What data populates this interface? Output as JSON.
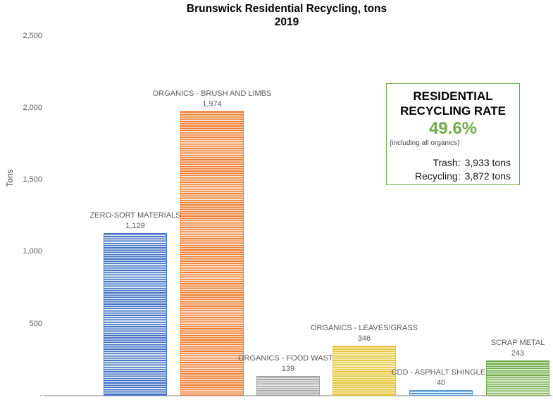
{
  "title": {
    "line1": "Brunswick Residential Recycling, tons",
    "line2": "2019"
  },
  "y_axis": {
    "label": "Tons",
    "ticks": [
      {
        "label": "2,500",
        "value": 2500
      },
      {
        "label": "2,000",
        "value": 2000
      },
      {
        "label": "1,500",
        "value": 1500
      },
      {
        "label": "1,000",
        "value": 1000
      },
      {
        "label": "500",
        "value": 500
      },
      {
        "label": "-",
        "value": 0
      }
    ]
  },
  "chart_data": {
    "type": "bar",
    "title": "Brunswick Residential Recycling, tons 2019",
    "xlabel": "",
    "ylabel": "Tons",
    "ylim": [
      0,
      2500
    ],
    "grid": false,
    "legend": false,
    "categories": [
      "ZERO-SORT MATERIALS",
      "ORGANICS - BRUSH AND LIMBS",
      "ORGANICS - FOOD WASTE",
      "ORGANICS - LEAVES/GRASS",
      "CDD - ASPHALT SHINGLES",
      "SCRAP METAL"
    ],
    "values": [
      1129,
      1974,
      139,
      346,
      40,
      243
    ],
    "value_labels": [
      "1,129",
      "1,974",
      "139",
      "346",
      "40",
      "243"
    ],
    "bar_style": "horizontal-stripe-pattern",
    "bar_colors": [
      {
        "main": "#4472C4",
        "light": "#DDE8F5"
      },
      {
        "main": "#ED7D31",
        "light": "#FBE3D1"
      },
      {
        "main": "#A3A3A3",
        "light": "#E9E9E9"
      },
      {
        "main": "#E5C33E",
        "light": "#F8F0BC"
      },
      {
        "main": "#5B9BD5",
        "light": "#DDEBF7"
      },
      {
        "main": "#70AD47",
        "light": "#E2EFDA"
      }
    ]
  },
  "info_box": {
    "border_color": "#70AD47",
    "title_line1": "RESIDENTIAL",
    "title_line2": "RECYCLING RATE",
    "rate": "49.6%",
    "rate_color": "#70AD47",
    "note": "(including all organics)",
    "trash_label": "Trash:",
    "trash_value": "3,933 tons",
    "recycling_label": "Recycling:",
    "recycling_value": "3,872 tons"
  }
}
